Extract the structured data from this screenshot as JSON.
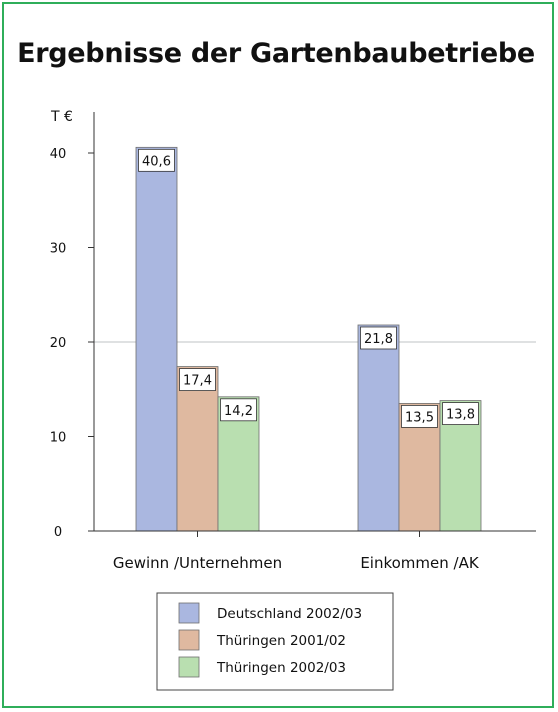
{
  "chart_data": {
    "type": "bar",
    "title": "Ergebnisse der Gartenbaubetriebe",
    "ylabel": "T €",
    "xlabel": "",
    "ylim": [
      0,
      42
    ],
    "yticks": [
      0,
      10,
      20,
      30,
      40
    ],
    "categories": [
      "Gewinn /Unternehmen",
      "Einkommen /AK"
    ],
    "series": [
      {
        "name": "Deutschland 2002/03",
        "color": "#aab7e0",
        "values": [
          40.6,
          21.8
        ],
        "labels": [
          "40,6",
          "21,8"
        ]
      },
      {
        "name": "Thüringen 2001/02",
        "color": "#dfb9a0",
        "values": [
          17.4,
          13.5
        ],
        "labels": [
          "17,4",
          "13,5"
        ]
      },
      {
        "name": "Thüringen 2002/03",
        "color": "#b9dfb0",
        "values": [
          14.2,
          13.8
        ],
        "labels": [
          "14,2",
          "13,8"
        ]
      }
    ],
    "grid_lines_at": [
      20
    ],
    "legend_position": "bottom-center"
  }
}
